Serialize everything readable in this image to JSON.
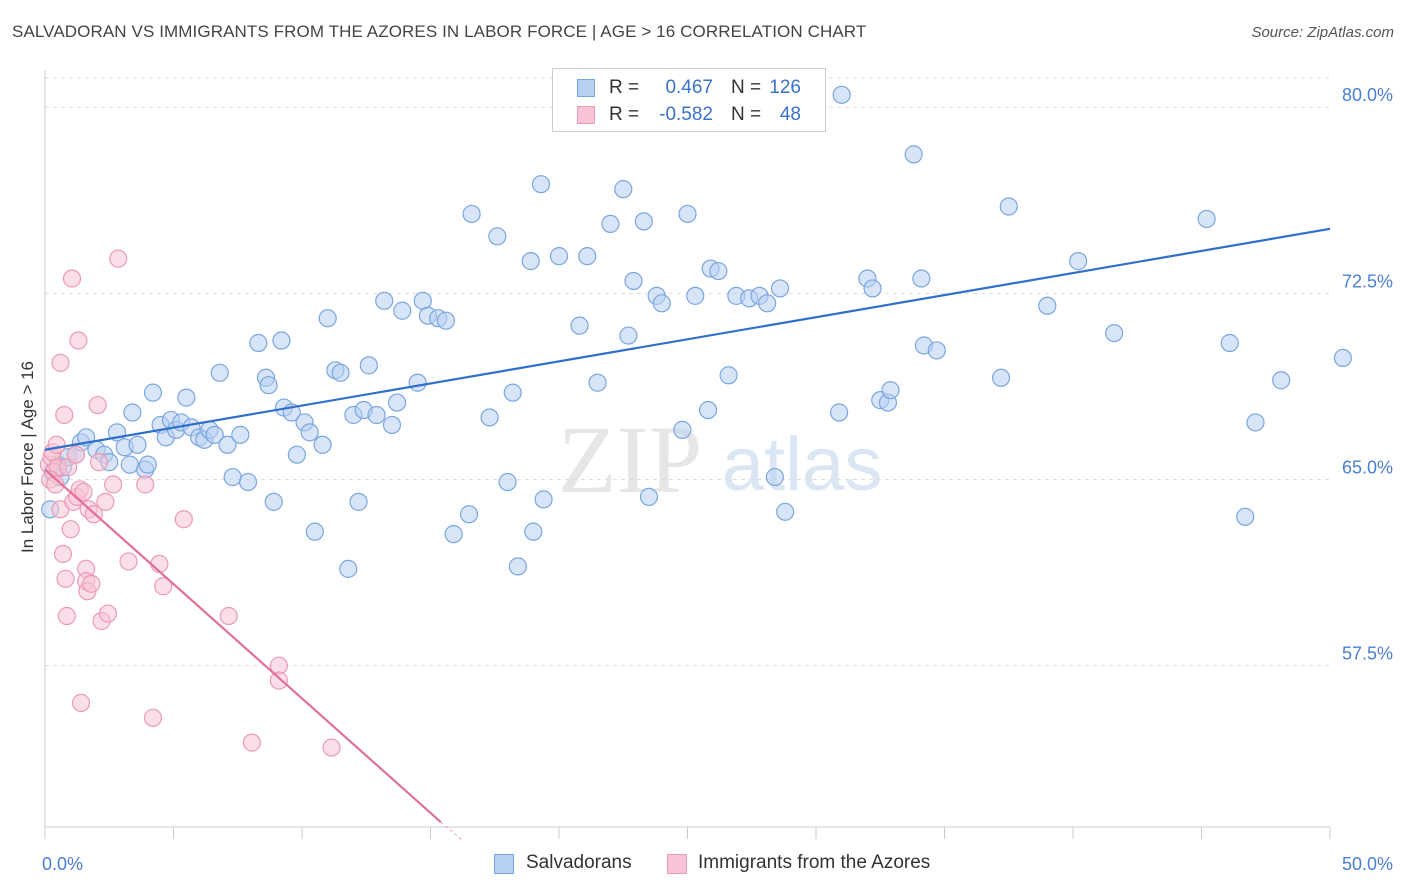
{
  "title": "SALVADORAN VS IMMIGRANTS FROM THE AZORES IN LABOR FORCE | AGE > 16 CORRELATION CHART",
  "source": "Source: ZipAtlas.com",
  "watermark": {
    "zip": "ZIP",
    "atlas": "atlas"
  },
  "stats": {
    "r_label": "R =",
    "n_label": "N =",
    "rows": [
      {
        "r": "0.467",
        "n": "126",
        "fill": "#b8d0f2",
        "stroke": "#7aa6e0"
      },
      {
        "r": "-0.582",
        "n": "48",
        "fill": "#f8c4d4",
        "stroke": "#ec9ab4"
      }
    ]
  },
  "legend": [
    {
      "label": "Salvadorans",
      "fill": "#b8d0f2",
      "stroke": "#7aa6e0"
    },
    {
      "label": "Immigrants from the Azores",
      "fill": "#f8c4d4",
      "stroke": "#ec9ab4"
    }
  ],
  "chart_data": {
    "type": "scatter",
    "ylabel": "In Labor Force | Age > 16",
    "xlim": [
      0,
      50
    ],
    "ylim": [
      51.0,
      81.5
    ],
    "x_tick_labels": [
      {
        "value": 0,
        "label": "0.0%"
      },
      {
        "value": 50,
        "label": "50.0%"
      }
    ],
    "y_ticks": [
      {
        "value": 57.5,
        "label": "57.5%"
      },
      {
        "value": 65.0,
        "label": "65.0%"
      },
      {
        "value": 72.5,
        "label": "72.5%"
      },
      {
        "value": 80.0,
        "label": "80.0%"
      }
    ],
    "grid": "horizontal-dashed",
    "series": [
      {
        "name": "Salvadorans",
        "color": "#7aa6e0",
        "fill": "#b8d0f2",
        "trend": {
          "x": [
            0,
            50
          ],
          "y": [
            66.2,
            75.1
          ],
          "color": "#2f6fcb"
        },
        "points": [
          [
            0.3,
            65.3
          ],
          [
            0.5,
            65.6
          ],
          [
            0.6,
            65.1
          ],
          [
            0.7,
            65.5
          ],
          [
            0.9,
            65.9
          ],
          [
            1.2,
            66.0
          ],
          [
            1.4,
            66.5
          ],
          [
            1.6,
            66.7
          ],
          [
            2.0,
            66.2
          ],
          [
            2.3,
            66.0
          ],
          [
            2.5,
            65.7
          ],
          [
            2.8,
            66.9
          ],
          [
            3.1,
            66.3
          ],
          [
            3.3,
            65.6
          ],
          [
            3.4,
            67.7
          ],
          [
            3.6,
            66.4
          ],
          [
            3.9,
            65.4
          ],
          [
            4.0,
            65.6
          ],
          [
            4.2,
            68.5
          ],
          [
            4.5,
            67.2
          ],
          [
            4.7,
            66.7
          ],
          [
            4.9,
            67.4
          ],
          [
            5.1,
            67.0
          ],
          [
            5.3,
            67.3
          ],
          [
            5.5,
            68.3
          ],
          [
            5.7,
            67.1
          ],
          [
            6.0,
            66.7
          ],
          [
            6.2,
            66.6
          ],
          [
            6.4,
            67.0
          ],
          [
            6.6,
            66.8
          ],
          [
            6.8,
            69.3
          ],
          [
            7.1,
            66.4
          ],
          [
            7.3,
            65.1
          ],
          [
            7.6,
            66.8
          ],
          [
            7.9,
            64.9
          ],
          [
            8.3,
            70.5
          ],
          [
            8.6,
            69.1
          ],
          [
            8.7,
            68.8
          ],
          [
            8.9,
            64.1
          ],
          [
            9.2,
            70.6
          ],
          [
            9.3,
            67.9
          ],
          [
            9.6,
            67.7
          ],
          [
            9.8,
            66.0
          ],
          [
            10.1,
            67.3
          ],
          [
            10.3,
            66.9
          ],
          [
            10.5,
            62.9
          ],
          [
            10.8,
            66.4
          ],
          [
            11.0,
            71.5
          ],
          [
            11.3,
            69.4
          ],
          [
            11.5,
            69.3
          ],
          [
            11.8,
            61.4
          ],
          [
            12.0,
            67.6
          ],
          [
            12.2,
            64.1
          ],
          [
            12.4,
            67.8
          ],
          [
            12.6,
            69.6
          ],
          [
            12.9,
            67.6
          ],
          [
            13.2,
            72.2
          ],
          [
            13.5,
            67.2
          ],
          [
            13.7,
            68.1
          ],
          [
            13.9,
            71.8
          ],
          [
            14.5,
            68.9
          ],
          [
            14.7,
            72.2
          ],
          [
            14.9,
            71.6
          ],
          [
            15.3,
            71.5
          ],
          [
            15.6,
            71.4
          ],
          [
            15.9,
            62.8
          ],
          [
            16.5,
            63.6
          ],
          [
            16.6,
            75.7
          ],
          [
            17.3,
            67.5
          ],
          [
            17.6,
            74.8
          ],
          [
            18.0,
            64.9
          ],
          [
            18.2,
            68.5
          ],
          [
            18.4,
            61.5
          ],
          [
            18.9,
            73.8
          ],
          [
            19.0,
            62.9
          ],
          [
            19.3,
            76.9
          ],
          [
            19.4,
            64.2
          ],
          [
            20.0,
            74.0
          ],
          [
            20.8,
            71.2
          ],
          [
            21.1,
            74.0
          ],
          [
            21.5,
            68.9
          ],
          [
            22.0,
            75.3
          ],
          [
            22.5,
            76.7
          ],
          [
            22.7,
            70.8
          ],
          [
            22.9,
            73.0
          ],
          [
            23.3,
            75.4
          ],
          [
            23.5,
            64.3
          ],
          [
            23.8,
            72.4
          ],
          [
            24.0,
            72.1
          ],
          [
            24.8,
            67.0
          ],
          [
            25.0,
            75.7
          ],
          [
            25.3,
            72.4
          ],
          [
            25.8,
            67.8
          ],
          [
            25.9,
            73.5
          ],
          [
            26.2,
            73.4
          ],
          [
            26.6,
            69.2
          ],
          [
            26.9,
            72.4
          ],
          [
            27.4,
            72.3
          ],
          [
            27.8,
            72.4
          ],
          [
            28.1,
            72.1
          ],
          [
            28.4,
            65.1
          ],
          [
            28.6,
            72.7
          ],
          [
            28.8,
            63.7
          ],
          [
            30.9,
            67.7
          ],
          [
            31.0,
            80.5
          ],
          [
            32.0,
            73.1
          ],
          [
            32.2,
            72.7
          ],
          [
            32.5,
            68.2
          ],
          [
            32.8,
            68.1
          ],
          [
            32.9,
            68.6
          ],
          [
            33.8,
            78.1
          ],
          [
            34.1,
            73.1
          ],
          [
            34.2,
            70.4
          ],
          [
            34.7,
            70.2
          ],
          [
            37.2,
            69.1
          ],
          [
            37.5,
            76.0
          ],
          [
            39.0,
            72.0
          ],
          [
            40.2,
            73.8
          ],
          [
            41.6,
            70.9
          ],
          [
            45.2,
            75.5
          ],
          [
            46.1,
            70.5
          ],
          [
            46.7,
            63.5
          ],
          [
            47.1,
            67.3
          ],
          [
            48.1,
            69.0
          ],
          [
            50.5,
            69.9
          ],
          [
            0.2,
            63.8
          ]
        ]
      },
      {
        "name": "Immigrants from the Azores",
        "color": "#ec9ab4",
        "fill": "#f8c4d4",
        "trend": {
          "x": [
            0,
            15.4
          ],
          "y": [
            65.4,
            51.2
          ],
          "color": "#e0709a",
          "dash_to": [
            16.2,
            50.5
          ]
        },
        "points": [
          [
            0.15,
            65.6
          ],
          [
            0.25,
            65.9
          ],
          [
            0.3,
            66.1
          ],
          [
            0.35,
            65.3
          ],
          [
            0.45,
            66.4
          ],
          [
            0.5,
            65.5
          ],
          [
            0.6,
            63.8
          ],
          [
            0.6,
            69.7
          ],
          [
            0.7,
            62.0
          ],
          [
            0.75,
            67.6
          ],
          [
            0.8,
            61.0
          ],
          [
            0.85,
            59.5
          ],
          [
            0.9,
            65.5
          ],
          [
            1.0,
            63.0
          ],
          [
            1.05,
            73.1
          ],
          [
            1.1,
            64.1
          ],
          [
            1.25,
            64.3
          ],
          [
            1.3,
            70.6
          ],
          [
            1.35,
            64.6
          ],
          [
            1.4,
            56.0
          ],
          [
            1.5,
            64.5
          ],
          [
            1.6,
            61.4
          ],
          [
            1.6,
            60.9
          ],
          [
            1.65,
            60.5
          ],
          [
            1.7,
            63.8
          ],
          [
            1.8,
            60.8
          ],
          [
            1.9,
            63.6
          ],
          [
            2.05,
            68.0
          ],
          [
            2.1,
            65.7
          ],
          [
            2.2,
            59.3
          ],
          [
            2.35,
            64.1
          ],
          [
            2.45,
            59.6
          ],
          [
            2.65,
            64.8
          ],
          [
            2.85,
            73.9
          ],
          [
            3.25,
            61.7
          ],
          [
            3.9,
            64.8
          ],
          [
            4.2,
            55.4
          ],
          [
            4.45,
            61.6
          ],
          [
            4.6,
            60.7
          ],
          [
            5.4,
            63.4
          ],
          [
            7.15,
            59.5
          ],
          [
            8.05,
            54.4
          ],
          [
            9.1,
            57.5
          ],
          [
            9.1,
            56.9
          ],
          [
            11.15,
            54.2
          ],
          [
            0.2,
            65.0
          ],
          [
            1.2,
            66.0
          ],
          [
            0.4,
            64.8
          ]
        ]
      }
    ]
  }
}
